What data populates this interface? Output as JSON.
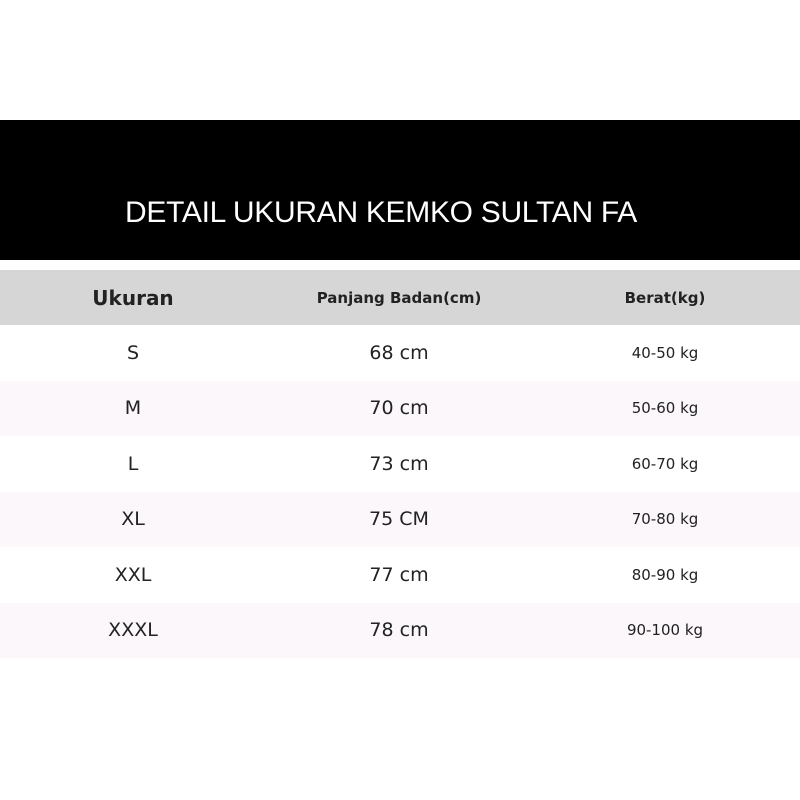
{
  "title": "DETAIL UKURAN KEMKO SULTAN FA",
  "table": {
    "headers": [
      "Ukuran",
      "Panjang Badan(cm)",
      "Berat(kg)"
    ],
    "rows": [
      [
        "S",
        "68 cm",
        "40-50 kg"
      ],
      [
        "M",
        "70 cm",
        "50-60 kg"
      ],
      [
        "L",
        "73 cm",
        "60-70 kg"
      ],
      [
        "XL",
        "75 CM",
        "70-80 kg"
      ],
      [
        "XXL",
        "77 cm",
        "80-90 kg"
      ],
      [
        "XXXL",
        "78 cm",
        "90-100 kg"
      ]
    ]
  },
  "colors": {
    "banner": "#000000",
    "header_bg": "#d6d6d6",
    "alt_row": "#fbf7fa"
  }
}
